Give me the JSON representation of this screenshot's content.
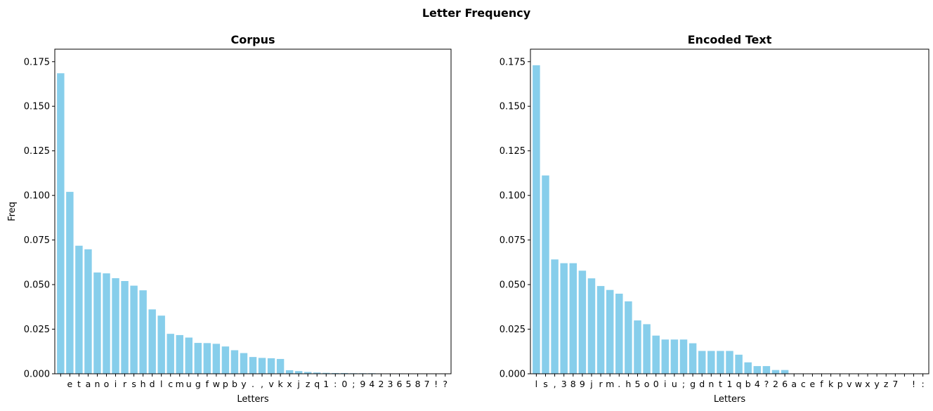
{
  "figure": {
    "suptitle": "Letter Frequency"
  },
  "colors": {
    "bar": "#87ceeb",
    "axis": "#000000",
    "background": "#ffffff"
  },
  "chart_data": [
    {
      "type": "bar",
      "title": "Corpus",
      "xlabel": "Letters",
      "ylabel": "Freq",
      "ylim": [
        0,
        0.182
      ],
      "yticks": [
        "0.000",
        "0.025",
        "0.050",
        "0.075",
        "0.100",
        "0.125",
        "0.150",
        "0.175"
      ],
      "grid": false,
      "categories": [
        " ",
        "e",
        "t",
        "a",
        "n",
        "o",
        "i",
        "r",
        "s",
        "h",
        "d",
        "l",
        "c",
        "m",
        "u",
        "g",
        "f",
        "w",
        "p",
        "b",
        "y",
        ".",
        ",",
        "v",
        "k",
        "x",
        "j",
        "z",
        "q",
        "1",
        ":",
        "0",
        ";",
        "9",
        "4",
        "2",
        "3",
        "6",
        "5",
        "8",
        "7",
        "!",
        "?"
      ],
      "values": [
        0.1685,
        0.102,
        0.0718,
        0.0698,
        0.0568,
        0.0563,
        0.0536,
        0.052,
        0.0494,
        0.0468,
        0.0361,
        0.0326,
        0.0224,
        0.0217,
        0.0203,
        0.0173,
        0.0172,
        0.0168,
        0.0153,
        0.0132,
        0.0116,
        0.0094,
        0.0089,
        0.0087,
        0.0083,
        0.002,
        0.0015,
        0.001,
        0.0007,
        0.0005,
        0.0004,
        0.0004,
        0.0003,
        0.0003,
        0.0003,
        0.0002,
        0.0002,
        0.0002,
        0.0001,
        0.0001,
        0.0001,
        0.0001,
        0.0001
      ]
    },
    {
      "type": "bar",
      "title": "Encoded Text",
      "xlabel": "Letters",
      "ylabel": "",
      "ylim": [
        0,
        0.182
      ],
      "yticks": [
        "0.000",
        "0.025",
        "0.050",
        "0.075",
        "0.100",
        "0.125",
        "0.150",
        "0.175"
      ],
      "grid": false,
      "categories": [
        "l",
        "s",
        ",",
        "3",
        "8",
        "9",
        "j",
        "r",
        "m",
        ".",
        "h",
        "5",
        "o",
        "0",
        "i",
        "u",
        ";",
        "g",
        "d",
        "n",
        "t",
        "1",
        "q",
        "b",
        "4",
        "?",
        "2",
        "6",
        "a",
        "c",
        "e",
        "f",
        "k",
        "p",
        "v",
        "w",
        "x",
        "y",
        "z",
        "7",
        " ",
        "!",
        ":"
      ],
      "values": [
        0.173,
        0.1112,
        0.0641,
        0.062,
        0.062,
        0.0578,
        0.0535,
        0.0492,
        0.047,
        0.0449,
        0.0406,
        0.0299,
        0.0278,
        0.0214,
        0.0192,
        0.0192,
        0.0192,
        0.0171,
        0.0128,
        0.0128,
        0.0128,
        0.0128,
        0.0107,
        0.0064,
        0.0043,
        0.0043,
        0.0021,
        0.0021,
        0,
        0,
        0,
        0,
        0,
        0,
        0,
        0,
        0,
        0,
        0,
        0,
        0,
        0,
        0
      ]
    }
  ]
}
